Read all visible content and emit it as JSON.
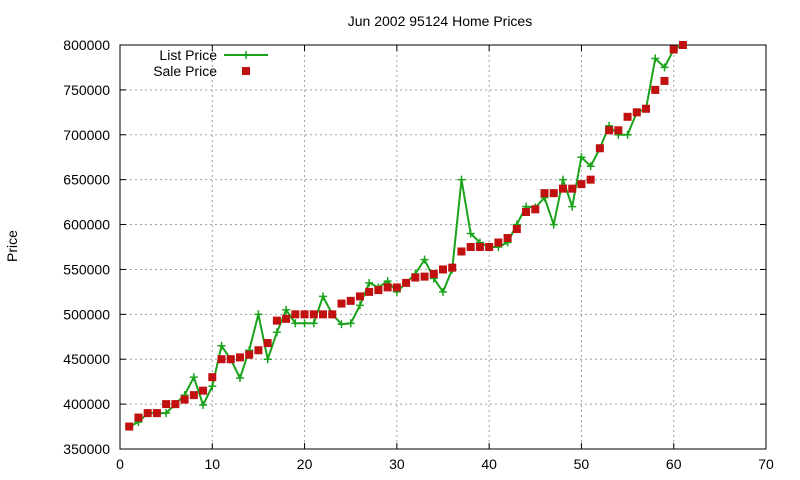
{
  "chart_data": {
    "type": "line",
    "title": "Jun 2002 95124 Home Prices",
    "xlabel": "",
    "ylabel": "Price",
    "xlim": [
      0,
      70
    ],
    "ylim": [
      350000,
      800000
    ],
    "x_ticks": [
      0,
      10,
      20,
      30,
      40,
      50,
      60,
      70
    ],
    "y_ticks": [
      350000,
      400000,
      450000,
      500000,
      550000,
      600000,
      650000,
      700000,
      750000,
      800000
    ],
    "grid": true,
    "legend_position": "top-left",
    "series": [
      {
        "name": "List Price",
        "style": "line-points",
        "color": "#1aa31a",
        "points": [
          [
            1,
            375000
          ],
          [
            2,
            380000
          ],
          [
            3,
            390000
          ],
          [
            4,
            390000
          ],
          [
            5,
            390000
          ],
          [
            6,
            400000
          ],
          [
            7,
            410000
          ],
          [
            8,
            430000
          ],
          [
            9,
            399000
          ],
          [
            10,
            420000
          ],
          [
            11,
            465000
          ],
          [
            12,
            450000
          ],
          [
            13,
            429000
          ],
          [
            14,
            460000
          ],
          [
            15,
            500000
          ],
          [
            16,
            450000
          ],
          [
            17,
            480000
          ],
          [
            18,
            505000
          ],
          [
            19,
            490000
          ],
          [
            20,
            490000
          ],
          [
            21,
            490000
          ],
          [
            22,
            520000
          ],
          [
            23,
            500000
          ],
          [
            24,
            489000
          ],
          [
            25,
            490000
          ],
          [
            26,
            510000
          ],
          [
            27,
            535000
          ],
          [
            28,
            530000
          ],
          [
            29,
            537000
          ],
          [
            30,
            525000
          ],
          [
            31,
            535000
          ],
          [
            32,
            545000
          ],
          [
            33,
            561000
          ],
          [
            34,
            540000
          ],
          [
            35,
            525000
          ],
          [
            36,
            550000
          ],
          [
            37,
            650000
          ],
          [
            38,
            590000
          ],
          [
            39,
            580000
          ],
          [
            40,
            575000
          ],
          [
            41,
            575000
          ],
          [
            42,
            580000
          ],
          [
            43,
            600000
          ],
          [
            44,
            620000
          ],
          [
            45,
            619000
          ],
          [
            46,
            630000
          ],
          [
            47,
            600000
          ],
          [
            48,
            650000
          ],
          [
            49,
            620000
          ],
          [
            50,
            675000
          ],
          [
            51,
            665000
          ],
          [
            52,
            685000
          ],
          [
            53,
            710000
          ],
          [
            54,
            700000
          ],
          [
            55,
            700000
          ],
          [
            56,
            725000
          ],
          [
            57,
            729000
          ],
          [
            58,
            785000
          ],
          [
            59,
            775000
          ],
          [
            60,
            795000
          ],
          [
            61,
            800000
          ]
        ]
      },
      {
        "name": "Sale Price",
        "style": "points",
        "color": "#c01010",
        "points": [
          [
            1,
            375000
          ],
          [
            2,
            385000
          ],
          [
            3,
            390000
          ],
          [
            4,
            390000
          ],
          [
            5,
            400000
          ],
          [
            6,
            400000
          ],
          [
            7,
            405000
          ],
          [
            8,
            410000
          ],
          [
            9,
            415000
          ],
          [
            10,
            430000
          ],
          [
            11,
            450000
          ],
          [
            12,
            450000
          ],
          [
            13,
            452000
          ],
          [
            14,
            455000
          ],
          [
            15,
            460000
          ],
          [
            16,
            468000
          ],
          [
            17,
            493000
          ],
          [
            18,
            495000
          ],
          [
            19,
            500000
          ],
          [
            20,
            500000
          ],
          [
            21,
            500000
          ],
          [
            22,
            500000
          ],
          [
            23,
            500000
          ],
          [
            24,
            512000
          ],
          [
            25,
            515000
          ],
          [
            26,
            520000
          ],
          [
            27,
            525000
          ],
          [
            28,
            527000
          ],
          [
            29,
            530000
          ],
          [
            30,
            530000
          ],
          [
            31,
            535000
          ],
          [
            32,
            541000
          ],
          [
            33,
            542000
          ],
          [
            34,
            545000
          ],
          [
            35,
            550000
          ],
          [
            36,
            552000
          ],
          [
            37,
            570000
          ],
          [
            38,
            575000
          ],
          [
            39,
            575000
          ],
          [
            40,
            575000
          ],
          [
            41,
            580000
          ],
          [
            42,
            585000
          ],
          [
            43,
            595000
          ],
          [
            44,
            614000
          ],
          [
            45,
            617000
          ],
          [
            46,
            635000
          ],
          [
            47,
            635000
          ],
          [
            48,
            640000
          ],
          [
            49,
            640000
          ],
          [
            50,
            645000
          ],
          [
            51,
            650000
          ],
          [
            52,
            685000
          ],
          [
            53,
            705000
          ],
          [
            54,
            705000
          ],
          [
            55,
            720000
          ],
          [
            56,
            725000
          ],
          [
            57,
            729000
          ],
          [
            58,
            750000
          ],
          [
            59,
            760000
          ],
          [
            60,
            795000
          ],
          [
            61,
            800000
          ]
        ]
      }
    ]
  }
}
